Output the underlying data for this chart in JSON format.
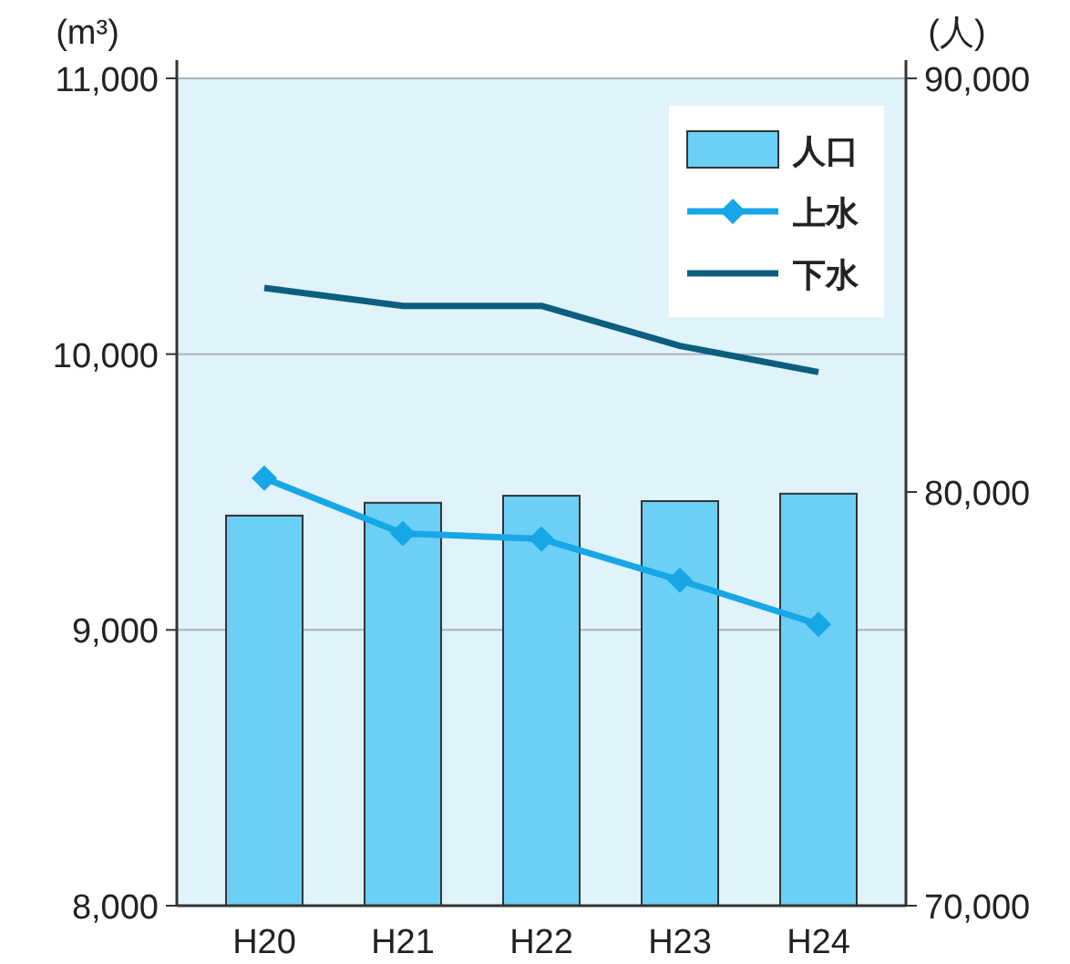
{
  "chart_data": {
    "type": "bar",
    "categories": [
      "H20",
      "H21",
      "H22",
      "H23",
      "H24"
    ],
    "ylabel": "(m³)",
    "y2label": "(人)",
    "ylim": [
      8000,
      11000
    ],
    "yticks": [
      {
        "value": 8000,
        "label": "8,000"
      },
      {
        "value": 9000,
        "label": "9,000"
      },
      {
        "value": 10000,
        "label": "10,000"
      },
      {
        "value": 11000,
        "label": "11,000"
      }
    ],
    "y2lim": [
      70000,
      90000
    ],
    "y2ticks": [
      {
        "value": 70000,
        "label": "70,000"
      },
      {
        "value": 80000,
        "label": "80,000"
      },
      {
        "value": 90000,
        "label": "90,000"
      }
    ],
    "grid": "y",
    "legend": "top right",
    "series": [
      {
        "name": "人口",
        "axis": "y2",
        "color": "#6ccff6",
        "values": [
          79430,
          79740,
          79910,
          79780,
          79960
        ]
      },
      {
        "name": "上水",
        "type": "line",
        "marker": "diamond",
        "color": "#17a6e6",
        "values": [
          9550,
          9350,
          9330,
          9180,
          9020
        ]
      },
      {
        "name": "下水",
        "type": "line",
        "marker": "none",
        "color": "#0b5e7e",
        "values": [
          10240,
          10175,
          10175,
          10030,
          9935
        ]
      }
    ]
  }
}
